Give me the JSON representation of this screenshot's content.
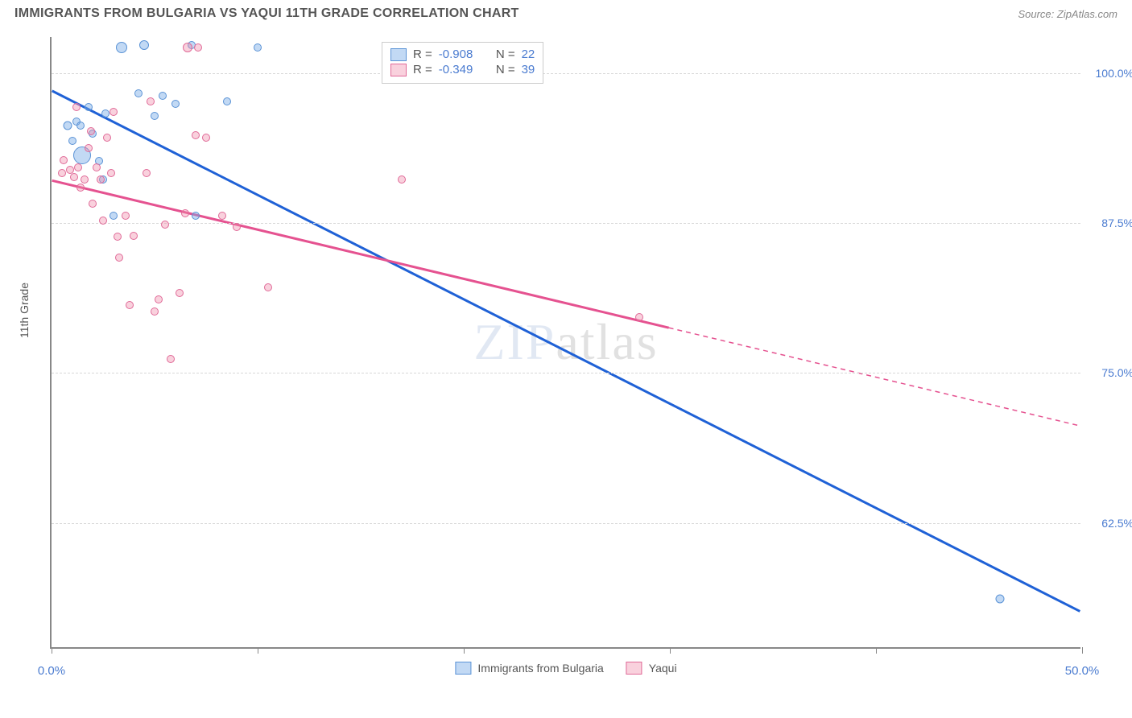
{
  "title": "IMMIGRANTS FROM BULGARIA VS YAQUI 11TH GRADE CORRELATION CHART",
  "source": "Source: ZipAtlas.com",
  "y_axis_title": "11th Grade",
  "watermark_a": "ZIP",
  "watermark_b": "atlas",
  "chart": {
    "type": "scatter-with-trend",
    "background_color": "#ffffff",
    "grid_color": "#d8d8d8",
    "axis_color": "#888888",
    "label_color": "#4a7bd0",
    "xlim": [
      0,
      50
    ],
    "ylim": [
      52,
      103
    ],
    "x_ticks": [
      0,
      10,
      20,
      30,
      40,
      50
    ],
    "x_tick_labels": [
      "0.0%",
      "",
      "",
      "",
      "",
      "50.0%"
    ],
    "y_ticks": [
      62.5,
      75.0,
      87.5,
      100.0
    ],
    "y_tick_labels": [
      "62.5%",
      "75.0%",
      "87.5%",
      "100.0%"
    ],
    "series": [
      {
        "name": "Immigrants from Bulgaria",
        "fill": "rgba(120,170,230,0.45)",
        "stroke": "#5b93d6",
        "line_color": "#1f61d6",
        "line_width": 3,
        "R": "-0.908",
        "N": "22",
        "trend": {
          "x1": 0,
          "y1": 98.5,
          "x2": 50,
          "y2": 55.0,
          "solid_xmax": 50
        },
        "points": [
          [
            0.8,
            95.5,
            11
          ],
          [
            1.0,
            94.2,
            10
          ],
          [
            1.2,
            95.8,
            10
          ],
          [
            1.5,
            93.0,
            22
          ],
          [
            1.4,
            95.5,
            10
          ],
          [
            1.8,
            97.0,
            10
          ],
          [
            2.0,
            94.8,
            10
          ],
          [
            2.3,
            92.5,
            10
          ],
          [
            2.5,
            91.0,
            10
          ],
          [
            2.6,
            96.5,
            10
          ],
          [
            3.0,
            88.0,
            10
          ],
          [
            3.4,
            102.0,
            14
          ],
          [
            4.2,
            98.2,
            10
          ],
          [
            4.5,
            102.2,
            12
          ],
          [
            5.0,
            96.3,
            10
          ],
          [
            5.4,
            98.0,
            10
          ],
          [
            6.0,
            97.3,
            10
          ],
          [
            6.8,
            102.2,
            10
          ],
          [
            7.0,
            88.0,
            10
          ],
          [
            8.5,
            97.5,
            10
          ],
          [
            10.0,
            102.0,
            10
          ],
          [
            46.0,
            56.0,
            11
          ]
        ]
      },
      {
        "name": "Yaqui",
        "fill": "rgba(240,140,170,0.40)",
        "stroke": "#e06a98",
        "line_color": "#e55290",
        "line_width": 3,
        "R": "-0.349",
        "N": "39",
        "trend": {
          "x1": 0,
          "y1": 91.0,
          "x2": 50,
          "y2": 70.5,
          "solid_xmax": 30
        },
        "points": [
          [
            0.5,
            91.5,
            10
          ],
          [
            0.6,
            92.6,
            10
          ],
          [
            0.9,
            91.8,
            10
          ],
          [
            1.1,
            91.2,
            10
          ],
          [
            1.3,
            92.0,
            10
          ],
          [
            1.4,
            90.3,
            10
          ],
          [
            1.6,
            91.0,
            10
          ],
          [
            1.8,
            93.6,
            10
          ],
          [
            1.2,
            97.0,
            10
          ],
          [
            1.9,
            95.0,
            10
          ],
          [
            2.0,
            89.0,
            10
          ],
          [
            2.2,
            92.0,
            10
          ],
          [
            2.4,
            91.0,
            10
          ],
          [
            2.5,
            87.6,
            10
          ],
          [
            2.7,
            94.5,
            10
          ],
          [
            2.9,
            91.5,
            10
          ],
          [
            3.0,
            96.6,
            10
          ],
          [
            3.2,
            86.2,
            10
          ],
          [
            3.3,
            84.5,
            10
          ],
          [
            3.6,
            88.0,
            10
          ],
          [
            3.8,
            80.5,
            10
          ],
          [
            4.0,
            86.3,
            10
          ],
          [
            4.6,
            91.5,
            10
          ],
          [
            5.0,
            80.0,
            10
          ],
          [
            4.8,
            97.5,
            10
          ],
          [
            5.2,
            81.0,
            10
          ],
          [
            5.5,
            87.2,
            10
          ],
          [
            5.8,
            76.0,
            10
          ],
          [
            6.2,
            81.5,
            10
          ],
          [
            6.5,
            88.2,
            10
          ],
          [
            6.6,
            102.0,
            12
          ],
          [
            7.0,
            94.7,
            10
          ],
          [
            7.1,
            102.0,
            10
          ],
          [
            7.5,
            94.5,
            10
          ],
          [
            8.3,
            88.0,
            10
          ],
          [
            9.0,
            87.0,
            10
          ],
          [
            10.5,
            82.0,
            10
          ],
          [
            17.0,
            91.0,
            10
          ],
          [
            28.5,
            79.5,
            10
          ]
        ]
      }
    ]
  },
  "bottom_legend": [
    {
      "label": "Immigrants from Bulgaria",
      "fill": "rgba(120,170,230,0.45)",
      "stroke": "#5b93d6"
    },
    {
      "label": "Yaqui",
      "fill": "rgba(240,140,170,0.40)",
      "stroke": "#e06a98"
    }
  ]
}
